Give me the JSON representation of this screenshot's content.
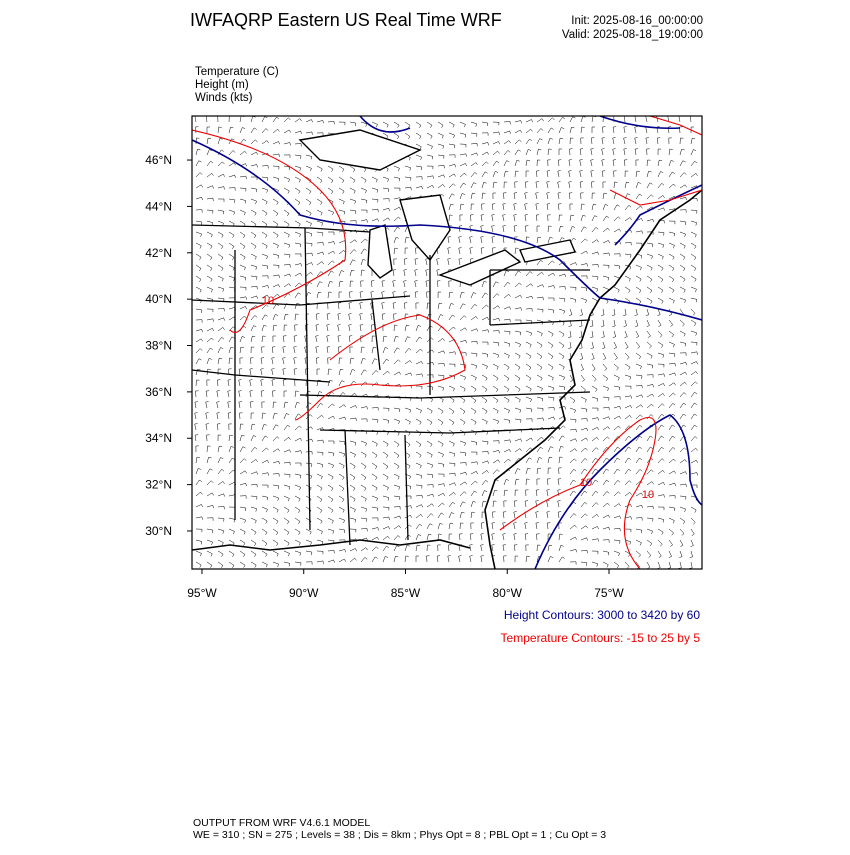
{
  "header": {
    "title": "IWFAQRP Eastern US Real Time WRF",
    "init": "Init: 2025-08-16_00:00:00",
    "valid": "Valid: 2025-08-18_19:00:00"
  },
  "fields": [
    "Temperature   (C)",
    "Height   (m)",
    "Winds   (kts)"
  ],
  "map": {
    "xlim": [
      -95.49,
      -70.43
    ],
    "ylim": [
      28.36,
      47.9
    ],
    "xticks": [
      {
        "value": -95,
        "label": "95°W"
      },
      {
        "value": -90,
        "label": "90°W"
      },
      {
        "value": -85,
        "label": "85°W"
      },
      {
        "value": -80,
        "label": "80°W"
      },
      {
        "value": -75,
        "label": "75°W"
      }
    ],
    "yticks": [
      {
        "value": 30,
        "label": "30°N"
      },
      {
        "value": 32,
        "label": "32°N"
      },
      {
        "value": 34,
        "label": "34°N"
      },
      {
        "value": 36,
        "label": "36°N"
      },
      {
        "value": 38,
        "label": "38°N"
      },
      {
        "value": 40,
        "label": "40°N"
      },
      {
        "value": 42,
        "label": "42°N"
      },
      {
        "value": 44,
        "label": "44°N"
      },
      {
        "value": 46,
        "label": "46°N"
      }
    ],
    "contour_labels": [
      "10",
      "10",
      "10"
    ]
  },
  "contours": {
    "height": "Height Contours: 3000 to 3420 by 60",
    "temperature": "Temperature Contours: -15 to 25 by 5"
  },
  "footer": {
    "model": "OUTPUT FROM WRF V4.6.1 MODEL",
    "settings": "WE = 310 ; SN = 275 ; Levels = 38 ; Dis = 8km ; Phys Opt = 8 ; PBL Opt = 1 ; Cu Opt = 3"
  }
}
